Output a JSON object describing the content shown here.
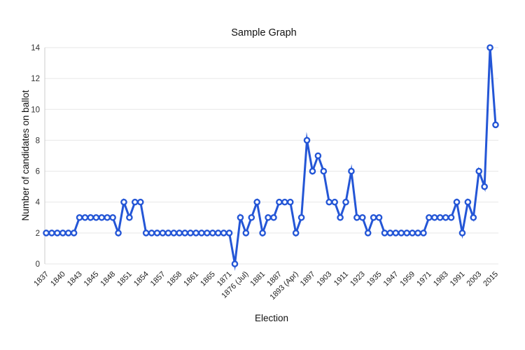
{
  "chart_data": {
    "type": "line",
    "title": "Sample Graph",
    "xlabel": "Election",
    "ylabel": "Number of candidates on ballot",
    "ylim": [
      0,
      14
    ],
    "yticks": [
      0,
      2,
      4,
      6,
      8,
      10,
      12,
      14
    ],
    "grid": "horizontal",
    "legend": "none",
    "line_color": "#2456d6",
    "marker_style": "open-circle",
    "marker_fill": "#ffffff",
    "gridline_color": "#e7e7e7",
    "axis_line_color": "#cccccc",
    "label_every_nth_point": 3,
    "x_labels": [
      "1837",
      "1840",
      "1843",
      "1845",
      "1848",
      "1851",
      "1854",
      "1857",
      "1858",
      "1861",
      "1865",
      "1871",
      "1876 (Jul)",
      "1881",
      "1887",
      "1893 (Apr)",
      "1897",
      "1903",
      "1911",
      "1923",
      "1935",
      "1947",
      "1959",
      "1971",
      "1983",
      "1991",
      "2003",
      "2015"
    ],
    "points": [
      {
        "label": "1837",
        "value": 2
      },
      {
        "label": null,
        "value": 2
      },
      {
        "label": null,
        "value": 2
      },
      {
        "label": "1840",
        "value": 2
      },
      {
        "label": null,
        "value": 2
      },
      {
        "label": null,
        "value": 2
      },
      {
        "label": "1843",
        "value": 3
      },
      {
        "label": null,
        "value": 3
      },
      {
        "label": null,
        "value": 3
      },
      {
        "label": "1845",
        "value": 3
      },
      {
        "label": null,
        "value": 3
      },
      {
        "label": null,
        "value": 3
      },
      {
        "label": "1848",
        "value": 3
      },
      {
        "label": null,
        "value": 2
      },
      {
        "label": null,
        "value": 4
      },
      {
        "label": "1851",
        "value": 3
      },
      {
        "label": null,
        "value": 4
      },
      {
        "label": null,
        "value": 4
      },
      {
        "label": "1854",
        "value": 2
      },
      {
        "label": null,
        "value": 2
      },
      {
        "label": null,
        "value": 2
      },
      {
        "label": "1857",
        "value": 2
      },
      {
        "label": null,
        "value": 2
      },
      {
        "label": null,
        "value": 2
      },
      {
        "label": "1858",
        "value": 2
      },
      {
        "label": null,
        "value": 2
      },
      {
        "label": null,
        "value": 2
      },
      {
        "label": "1861",
        "value": 2
      },
      {
        "label": null,
        "value": 2
      },
      {
        "label": null,
        "value": 2
      },
      {
        "label": "1865",
        "value": 2
      },
      {
        "label": null,
        "value": 2
      },
      {
        "label": null,
        "value": 2
      },
      {
        "label": "1871",
        "value": 2
      },
      {
        "label": null,
        "value": 0
      },
      {
        "label": null,
        "value": 3
      },
      {
        "label": "1876 (Jul)",
        "value": 2
      },
      {
        "label": null,
        "value": 3
      },
      {
        "label": null,
        "value": 4
      },
      {
        "label": "1881",
        "value": 2
      },
      {
        "label": null,
        "value": 3
      },
      {
        "label": null,
        "value": 3
      },
      {
        "label": "1887",
        "value": 4
      },
      {
        "label": null,
        "value": 4
      },
      {
        "label": null,
        "value": 4
      },
      {
        "label": "1893 (Apr)",
        "value": 2
      },
      {
        "label": null,
        "value": 3
      },
      {
        "label": null,
        "value": 8
      },
      {
        "label": "1897",
        "value": 6
      },
      {
        "label": null,
        "value": 7
      },
      {
        "label": null,
        "value": 6
      },
      {
        "label": "1903",
        "value": 4
      },
      {
        "label": null,
        "value": 4
      },
      {
        "label": null,
        "value": 3
      },
      {
        "label": "1911",
        "value": 4
      },
      {
        "label": null,
        "value": 6
      },
      {
        "label": null,
        "value": 3
      },
      {
        "label": "1923",
        "value": 3
      },
      {
        "label": null,
        "value": 2
      },
      {
        "label": null,
        "value": 3
      },
      {
        "label": "1935",
        "value": 3
      },
      {
        "label": null,
        "value": 2
      },
      {
        "label": null,
        "value": 2
      },
      {
        "label": "1947",
        "value": 2
      },
      {
        "label": null,
        "value": 2
      },
      {
        "label": null,
        "value": 2
      },
      {
        "label": "1959",
        "value": 2
      },
      {
        "label": null,
        "value": 2
      },
      {
        "label": null,
        "value": 2
      },
      {
        "label": "1971",
        "value": 3
      },
      {
        "label": null,
        "value": 3
      },
      {
        "label": null,
        "value": 3
      },
      {
        "label": "1983",
        "value": 3
      },
      {
        "label": null,
        "value": 3
      },
      {
        "label": null,
        "value": 4
      },
      {
        "label": "1991",
        "value": 2
      },
      {
        "label": null,
        "value": 4
      },
      {
        "label": null,
        "value": 3
      },
      {
        "label": "2003",
        "value": 6
      },
      {
        "label": null,
        "value": 5
      },
      {
        "label": null,
        "value": 14
      },
      {
        "label": "2015",
        "value": 9
      }
    ]
  }
}
